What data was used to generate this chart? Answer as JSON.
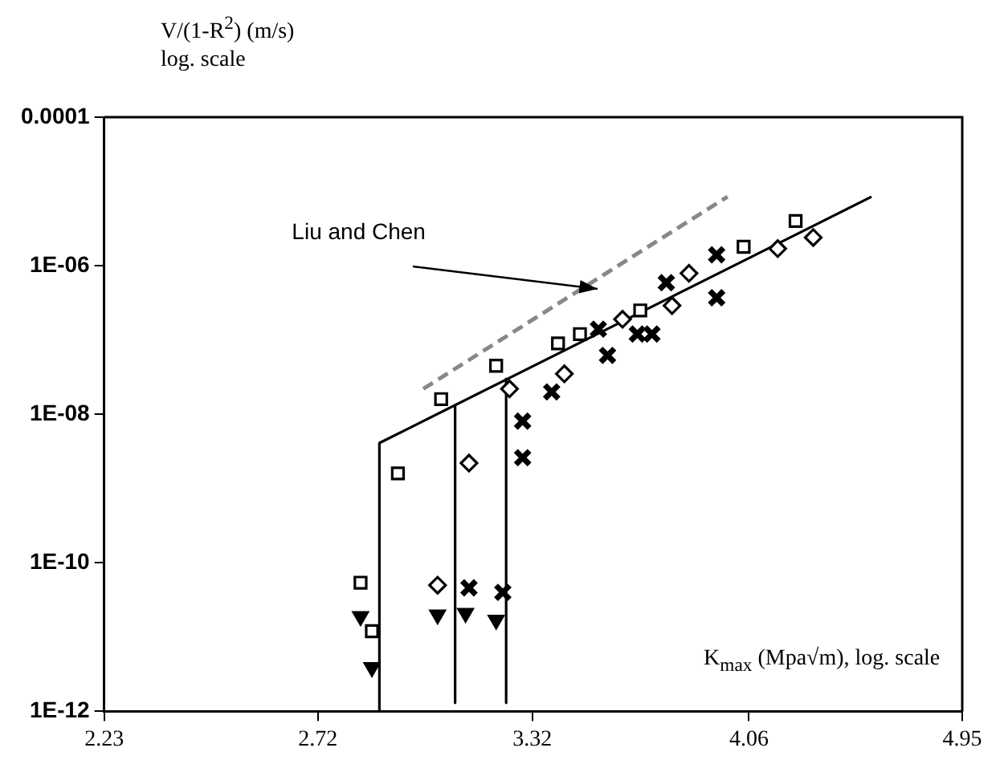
{
  "chart_data": {
    "type": "scatter",
    "xlabel": "K$_{max}$ (Mpa√m), log. scale",
    "ylabel": "V/(1-R$^{2}$) (m/s)\nlog. scale",
    "log": "xy",
    "xlim": [
      2.23,
      4.95
    ],
    "xticks": [
      2.23,
      2.72,
      3.32,
      4.06,
      4.95
    ],
    "ylim": [
      1e-12,
      0.0001
    ],
    "yticks": [
      {
        "value": 1e-12,
        "label": "1E-12"
      },
      {
        "value": 1e-10,
        "label": "1E-10"
      },
      {
        "value": 1e-08,
        "label": "1E-08"
      },
      {
        "value": 1e-06,
        "label": "1E-06"
      },
      0.0001
    ],
    "grid": false,
    "legend": false,
    "series": [
      {
        "marker": "square",
        "color": "#000000",
        "x": [
          2.83,
          2.86,
          2.93,
          3.05,
          3.21,
          3.4,
          3.47,
          3.67,
          4.04,
          4.24
        ],
        "values": [
          5.4e-11,
          1.2e-11,
          1.6e-09,
          1.6e-08,
          4.5e-08,
          9e-08,
          1.2e-07,
          2.5e-07,
          1.8e-06,
          4e-06
        ]
      },
      {
        "marker": "diamond",
        "color": "#000000",
        "x": [
          3.04,
          3.13,
          3.25,
          3.42,
          3.61,
          3.78,
          3.84,
          4.17,
          4.31
        ],
        "values": [
          5e-11,
          2.2e-09,
          2.2e-08,
          3.5e-08,
          1.9e-07,
          2.9e-07,
          7.9e-07,
          1.7e-06,
          2.4e-06
        ]
      },
      {
        "marker": "cross",
        "color": "#000000",
        "x": [
          3.13,
          3.23,
          3.29,
          3.29,
          3.38,
          3.53,
          3.56,
          3.66,
          3.71,
          3.76,
          3.94,
          3.94
        ],
        "values": [
          4.6e-11,
          4e-11,
          2.6e-09,
          8.1e-09,
          2e-08,
          1.4e-07,
          6.2e-08,
          1.2e-07,
          1.2e-07,
          5.9e-07,
          1.4e-06,
          3.7e-07
        ]
      },
      {
        "marker": "triangle",
        "color": "#000000",
        "x": [
          2.83,
          2.86,
          3.04,
          3.12,
          3.21
        ],
        "values": [
          1.9e-11,
          3.9e-12,
          2e-11,
          2.1e-11,
          1.7e-11
        ]
      },
      {
        "type": "line",
        "marker": "none",
        "line_style": "solid",
        "color": "#000000",
        "x": [
          2.88,
          4.55
        ],
        "values": [
          4.1e-09,
          8.5e-06
        ]
      },
      {
        "type": "line",
        "marker": "none",
        "line_style": "solid",
        "color": "#000000",
        "x": [
          2.88,
          2.88
        ],
        "values": [
          4.1e-09,
          1e-12
        ]
      },
      {
        "type": "line",
        "marker": "none",
        "line_style": "solid",
        "color": "#000000",
        "x": [
          3.09,
          3.09
        ],
        "values": [
          1.3e-08,
          1.3e-12
        ]
      },
      {
        "type": "line",
        "marker": "none",
        "line_style": "solid",
        "color": "#000000",
        "x": [
          3.24,
          3.24
        ],
        "values": [
          3e-08,
          1.3e-12
        ]
      },
      {
        "type": "line",
        "name": "Liu and Chen",
        "marker": "none",
        "line_style": "dashed",
        "color": "#888888",
        "x": [
          3.0,
          3.98
        ],
        "values": [
          2.2e-08,
          8.5e-06
        ]
      }
    ]
  }
}
